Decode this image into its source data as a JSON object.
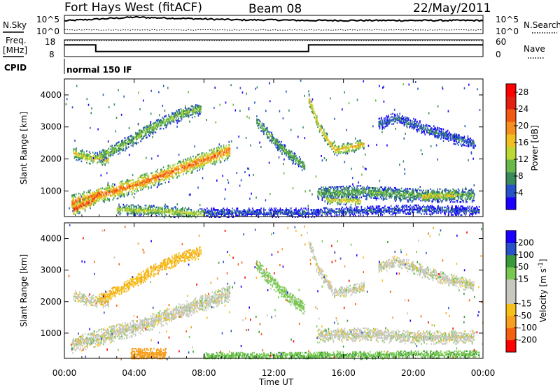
{
  "header": {
    "title": "Fort Hays West (fitACF)",
    "beam": "Beam 08",
    "date": "22/May/2011"
  },
  "top_panels": {
    "nsky_label": "N.Sky",
    "nsearch_label": "N.Search",
    "nsky_ticks": [
      "10^5",
      "10^0"
    ],
    "nsearch_ticks": [
      "10^5",
      "10^0"
    ],
    "freq_label_1": "Freq.",
    "freq_label_2": "[MHz]",
    "freq_ticks": [
      "18",
      "8"
    ],
    "nave_label": "Nave",
    "nave_ticks": [
      "60",
      "0"
    ],
    "cpid_label": "CPID",
    "cpid_value": "normal 150 IF"
  },
  "colors": {
    "power": [
      "#1c00ff",
      "#2a52c8",
      "#3a8a5a",
      "#6ab84a",
      "#bcd832",
      "#f0c020",
      "#f59020",
      "#f25a14",
      "#e32010",
      "#ff0000"
    ],
    "velocity": [
      "#ff0000",
      "#f46010",
      "#f7a020",
      "#f5c01a",
      "#c8c8c0",
      "#c8c8c0",
      "#78c850",
      "#3a9a3a",
      "#2a52c8",
      "#1c00ff"
    ]
  },
  "chart_data": [
    {
      "type": "line",
      "name": "sky-search-counts",
      "x": [
        0,
        2,
        4,
        6,
        8,
        10,
        12,
        14,
        16,
        18,
        20,
        22,
        24
      ],
      "series": [
        {
          "name": "N.Sky",
          "values": [
            0.7,
            0.8,
            0.9,
            0.85,
            0.8,
            0.75,
            0.75,
            0.72,
            0.72,
            0.72,
            0.72,
            0.72,
            0.72
          ]
        },
        {
          "name": "N.Search",
          "values": [
            0.2,
            0.2,
            0.2,
            0.2,
            0.2,
            0.2,
            0.2,
            0.2,
            0.2,
            0.2,
            0.2,
            0.2,
            0.2
          ]
        }
      ],
      "yticklabels": [
        "10^5",
        "10^0"
      ]
    },
    {
      "type": "line",
      "name": "frequency",
      "series": [
        {
          "name": "Freq",
          "x": [
            0,
            1.8,
            1.8,
            14.0,
            14.0,
            24
          ],
          "values": [
            15,
            15,
            11,
            11,
            15,
            15
          ]
        },
        {
          "name": "Nave",
          "x": [
            0,
            24
          ],
          "values": [
            57,
            57
          ]
        }
      ],
      "ylim": [
        8,
        18
      ],
      "yticks": [
        8,
        18
      ],
      "y2lim": [
        0,
        60
      ],
      "y2ticks": [
        0,
        60
      ]
    },
    {
      "type": "heatmap",
      "name": "power",
      "ylabel": "Slant Range [km]",
      "colorbar_label": "Power [dB]",
      "colorbar_ticks": [
        4,
        8,
        12,
        16,
        20,
        24,
        28
      ],
      "clim": [
        0,
        30
      ],
      "ylim": [
        200,
        4500
      ],
      "yticks": [
        1000,
        2000,
        3000,
        4000
      ],
      "xlim": [
        0,
        24
      ],
      "features": [
        {
          "t": [
            0.4,
            2.0,
            4.0,
            6.0,
            8.0,
            9.5
          ],
          "r": [
            650,
            900,
            1200,
            1600,
            2000,
            2300
          ],
          "width": 260,
          "level": 22
        },
        {
          "t": [
            0.5,
            1.5,
            2.0
          ],
          "r": [
            450,
            700,
            1000
          ],
          "width": 200,
          "level": 25
        },
        {
          "t": [
            0.5,
            1.5,
            2.5
          ],
          "r": [
            2200,
            2050,
            2000
          ],
          "width": 180,
          "level": 16
        },
        {
          "t": [
            2.0,
            3.5,
            5.0,
            6.5,
            7.8
          ],
          "r": [
            2100,
            2500,
            3000,
            3400,
            3600
          ],
          "width": 200,
          "level": 12
        },
        {
          "t": [
            3.0,
            5.5,
            8.0
          ],
          "r": [
            450,
            400,
            300
          ],
          "width": 160,
          "level": 14
        },
        {
          "t": [
            11.0,
            12.0,
            13.0,
            13.8
          ],
          "r": [
            3200,
            2600,
            2100,
            1800
          ],
          "width": 200,
          "level": 10
        },
        {
          "t": [
            14.0,
            14.6,
            15.5,
            16.5,
            17.2
          ],
          "r": [
            3900,
            3000,
            2300,
            2400,
            2500
          ],
          "width": 170,
          "level": 18
        },
        {
          "t": [
            18.0,
            19.0,
            20.0,
            21.5,
            23.5
          ],
          "r": [
            3100,
            3300,
            3100,
            2800,
            2500
          ],
          "width": 180,
          "level": 6
        },
        {
          "t": [
            14.5,
            17.0,
            20.0,
            23.5
          ],
          "r": [
            950,
            1000,
            900,
            900
          ],
          "width": 220,
          "level": 10
        },
        {
          "t": [
            15.0,
            17.0
          ],
          "r": [
            750,
            700
          ],
          "width": 120,
          "level": 17
        },
        {
          "t": [
            20.5,
            22.5
          ],
          "r": [
            850,
            900
          ],
          "width": 150,
          "level": 17
        },
        {
          "t": [
            8.0,
            14.0,
            20.0,
            23.8
          ],
          "r": [
            350,
            350,
            450,
            400
          ],
          "width": 140,
          "level": 5
        }
      ]
    },
    {
      "type": "heatmap",
      "name": "velocity",
      "ylabel": "Slant Range [km]",
      "xlabel": "Time UT",
      "colorbar_label": "Velocity [m s^-1]",
      "colorbar_ticks": [
        -200,
        -100,
        -50,
        -15,
        15,
        50,
        100,
        200
      ],
      "clim": [
        -250,
        250
      ],
      "ylim": [
        200,
        4500
      ],
      "yticks": [
        1000,
        2000,
        3000,
        4000
      ],
      "xlim": [
        0,
        24
      ],
      "xticks": [
        0,
        4,
        8,
        12,
        16,
        20,
        24
      ],
      "xticklabels": [
        "00:00",
        "04:00",
        "08:00",
        "12:00",
        "16:00",
        "20:00",
        "00:00"
      ],
      "features": [
        {
          "t": [
            0.4,
            2.0,
            4.0,
            6.0,
            8.0,
            9.5
          ],
          "r": [
            650,
            900,
            1200,
            1600,
            2000,
            2300
          ],
          "width": 260,
          "level": 0
        },
        {
          "t": [
            0.5,
            1.5,
            2.5
          ],
          "r": [
            2200,
            2050,
            2000
          ],
          "width": 180,
          "level": 0
        },
        {
          "t": [
            2.0,
            3.5,
            5.0,
            6.5,
            7.8
          ],
          "r": [
            2100,
            2500,
            3000,
            3400,
            3600
          ],
          "width": 200,
          "level": -40
        },
        {
          "t": [
            3.8,
            5.8
          ],
          "r": [
            350,
            350
          ],
          "width": 220,
          "level": -80
        },
        {
          "t": [
            11.0,
            12.0,
            13.0,
            13.8
          ],
          "r": [
            3200,
            2600,
            2100,
            1800
          ],
          "width": 200,
          "level": 30
        },
        {
          "t": [
            14.0,
            14.6,
            15.5,
            16.5,
            17.2
          ],
          "r": [
            3900,
            3000,
            2300,
            2400,
            2500
          ],
          "width": 170,
          "level": 0
        },
        {
          "t": [
            18.0,
            19.0,
            20.0,
            21.5,
            23.5
          ],
          "r": [
            3100,
            3300,
            3100,
            2800,
            2500
          ],
          "width": 180,
          "level": 0
        },
        {
          "t": [
            14.5,
            17.0,
            20.0,
            23.5
          ],
          "r": [
            950,
            1000,
            900,
            900
          ],
          "width": 220,
          "level": 0
        },
        {
          "t": [
            8.0,
            14.0,
            20.0,
            23.8
          ],
          "r": [
            300,
            300,
            350,
            350
          ],
          "width": 120,
          "level": 40
        }
      ]
    }
  ],
  "axes": {
    "range_ticks": [
      "1000",
      "2000",
      "3000",
      "4000"
    ],
    "time_ticks": [
      "00:00",
      "04:00",
      "08:00",
      "12:00",
      "16:00",
      "20:00",
      "00:00"
    ],
    "ylabel": "Slant Range [km]",
    "xlabel": "Time UT",
    "power_label": "Power [dB]",
    "power_ticks": [
      "4",
      "8",
      "12",
      "16",
      "20",
      "24",
      "28"
    ],
    "velocity_label_main": "Velocity [m s",
    "velocity_label_exp": "-1",
    "velocity_label_end": "]",
    "velocity_ticks": [
      "-200",
      "-100",
      "-50",
      "-15",
      "15",
      "50",
      "100",
      "200"
    ]
  }
}
